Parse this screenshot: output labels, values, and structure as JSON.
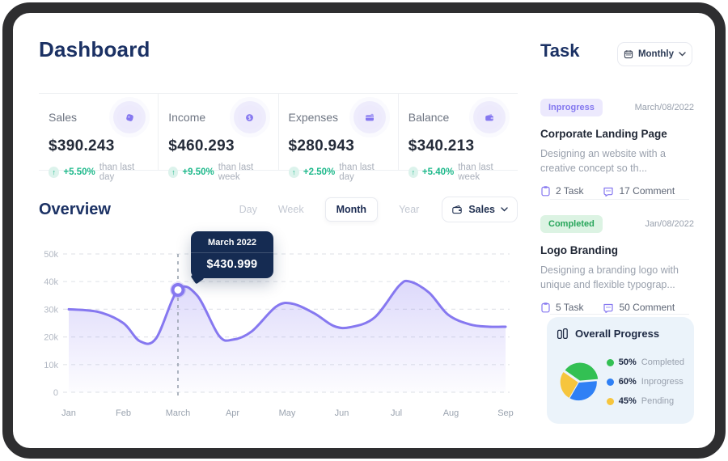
{
  "colors": {
    "accent_purple": "#8678f0",
    "navy": "#1b3164",
    "tooltip_bg": "#152b52",
    "green": "#1eb98b",
    "grid": "#e3e5ea",
    "axis_text": "#b2b8c3"
  },
  "header": {
    "title": "Dashboard"
  },
  "stats": {
    "cards": [
      {
        "label": "Sales",
        "icon": "sales-icon",
        "value": "$390.243",
        "delta": "+5.50%",
        "delta_suffix": "than last day"
      },
      {
        "label": "Income",
        "icon": "income-icon",
        "value": "$460.293",
        "delta": "+9.50%",
        "delta_suffix": "than last week"
      },
      {
        "label": "Expenses",
        "icon": "expenses-icon",
        "value": "$280.943",
        "delta": "+2.50%",
        "delta_suffix": "than last day"
      },
      {
        "label": "Balance",
        "icon": "balance-icon",
        "value": "$340.213",
        "delta": "+5.40%",
        "delta_suffix": "than last week"
      }
    ]
  },
  "overview": {
    "title": "Overview",
    "tabs": [
      "Day",
      "Week",
      "Month",
      "Year"
    ],
    "active_tab": "Month",
    "filter_label": "Sales"
  },
  "chart_data": [
    {
      "type": "line",
      "title": "Overview",
      "x_labels": [
        "Jan",
        "Feb",
        "March",
        "Apr",
        "May",
        "Jun",
        "Jul",
        "Aug",
        "Sep"
      ],
      "y_ticks": [
        {
          "value": 50,
          "label": "50k"
        },
        {
          "value": 40,
          "label": "40k"
        },
        {
          "value": 30,
          "label": "30k"
        },
        {
          "value": 20,
          "label": "20k"
        },
        {
          "value": 10,
          "label": "10k"
        },
        {
          "value": 0,
          "label": "0"
        }
      ],
      "ylim": [
        0,
        50
      ],
      "grid": "dashed-horizontal",
      "legend": "none",
      "series": [
        {
          "name": "Sales",
          "color": "#8678f0",
          "points": [
            [
              0,
              30
            ],
            [
              0.55,
              29
            ],
            [
              1,
              25
            ],
            [
              1.3,
              18.5
            ],
            [
              1.6,
              19.5
            ],
            [
              2,
              37
            ],
            [
              2.35,
              35
            ],
            [
              2.75,
              20.5
            ],
            [
              3,
              19
            ],
            [
              3.35,
              22
            ],
            [
              3.8,
              31
            ],
            [
              4.1,
              32
            ],
            [
              4.5,
              28.5
            ],
            [
              4.85,
              24
            ],
            [
              5.15,
              23.5
            ],
            [
              5.6,
              27
            ],
            [
              6.05,
              38.5
            ],
            [
              6.25,
              40
            ],
            [
              6.6,
              36
            ],
            [
              6.95,
              28
            ],
            [
              7.35,
              24.5
            ],
            [
              7.7,
              23.7
            ],
            [
              8,
              23.7
            ]
          ]
        }
      ],
      "highlight": {
        "x": 2,
        "y": 37,
        "month": "March",
        "tooltip_title": "March 2022",
        "tooltip_value": "$430.999"
      }
    },
    {
      "type": "pie",
      "title": "Overall Progress",
      "legend_position": "right",
      "slices": [
        {
          "label": "Completed",
          "pct": "50%",
          "color": "#33c053",
          "start": -55,
          "end": 85,
          "exploded": true
        },
        {
          "label": "Inprogress",
          "pct": "60%",
          "color": "#2f80f5",
          "start": 85,
          "end": 210,
          "exploded": false
        },
        {
          "label": "Pending",
          "pct": "45%",
          "color": "#f6c53d",
          "start": 210,
          "end": 305,
          "exploded": false
        }
      ]
    }
  ],
  "task_panel": {
    "title": "Task",
    "filter_label": "Monthly",
    "tasks": [
      {
        "status": "Inprogress",
        "status_color": "#8377ef",
        "status_bg": "#ece9fd",
        "date": "March/08/2022",
        "title": "Corporate Landing Page",
        "description": "Designing an website with a creative concept so th...",
        "task_count": "2 Task",
        "comment_count": "17 Comment"
      },
      {
        "status": "Completed",
        "status_color": "#27a55a",
        "status_bg": "#dcf3e3",
        "date": "Jan/08/2022",
        "title": "Logo Branding",
        "description": "Designing a branding logo with unique and flexible typograp...",
        "task_count": "5 Task",
        "comment_count": "50 Comment"
      }
    ]
  }
}
